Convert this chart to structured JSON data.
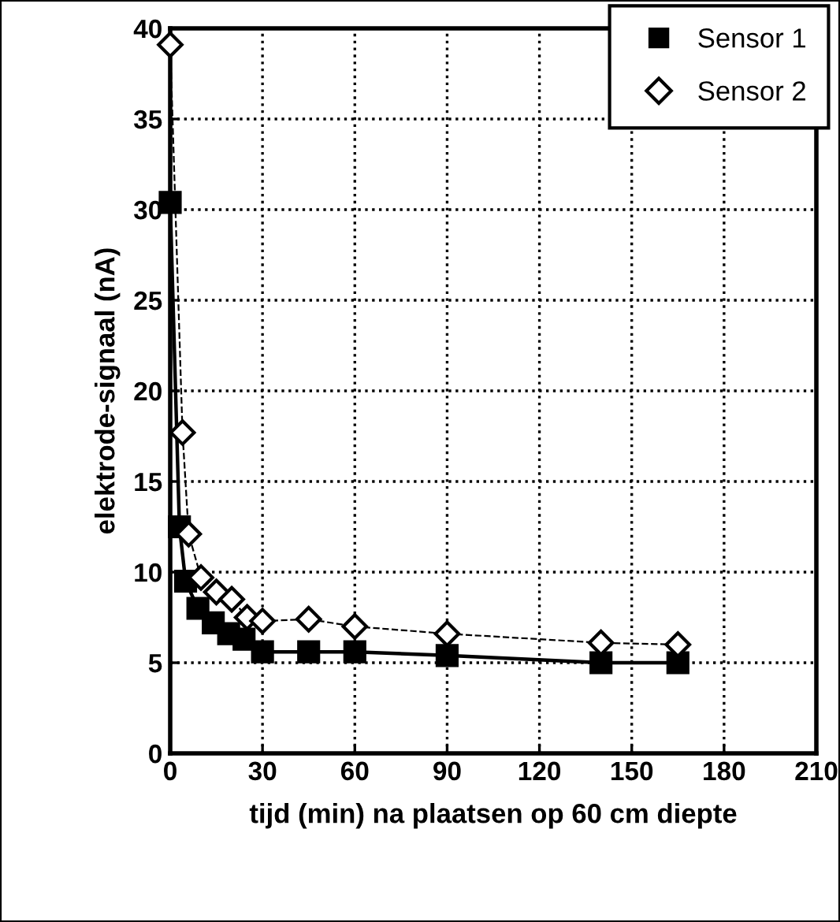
{
  "chart_data": {
    "type": "line",
    "xlabel": "tijd (min) na plaatsen op 60 cm diepte",
    "ylabel": "elektrode-signaal (nA)",
    "xlim": [
      0,
      210
    ],
    "xticks": [
      0,
      30,
      60,
      90,
      120,
      150,
      180,
      210
    ],
    "ylim": [
      0,
      40
    ],
    "yticks": [
      0,
      5,
      10,
      15,
      20,
      25,
      30,
      35,
      40
    ],
    "grid": true,
    "legend": "top right",
    "series": [
      {
        "name": "Sensor 1",
        "color": "#000000",
        "marker": "square",
        "line_style": "solid",
        "x": [
          0,
          3,
          5,
          9,
          14,
          19,
          24,
          30,
          45,
          60,
          90,
          140,
          165
        ],
        "values": [
          30.4,
          12.5,
          9.5,
          8.0,
          7.2,
          6.6,
          6.3,
          5.6,
          5.6,
          5.6,
          5.4,
          5.0,
          5.0
        ]
      },
      {
        "name": "Sensor 2",
        "color": "#000000",
        "marker": "diamond",
        "line_style": "dashed",
        "x": [
          0,
          4,
          6,
          10,
          15,
          20,
          25,
          30,
          45,
          60,
          90,
          140,
          165
        ],
        "values": [
          39.1,
          17.7,
          12.1,
          9.7,
          8.9,
          8.5,
          7.5,
          7.3,
          7.4,
          7.0,
          6.6,
          6.1,
          6.0
        ]
      }
    ]
  }
}
